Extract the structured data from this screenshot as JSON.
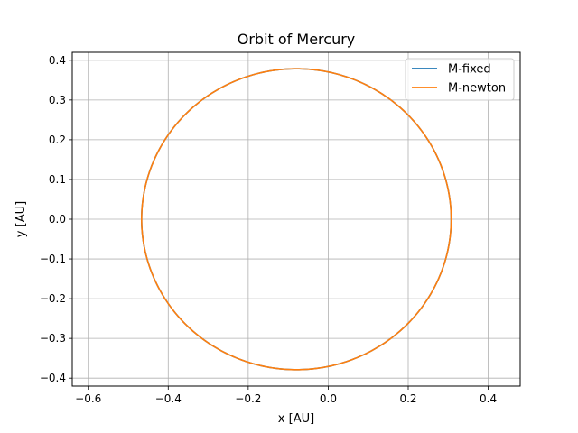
{
  "chart_data": {
    "type": "line",
    "title": "Orbit of Mercury",
    "xlabel": "x [AU]",
    "ylabel": "y [AU]",
    "xlim": [
      -0.64,
      0.48
    ],
    "ylim": [
      -0.42,
      0.42
    ],
    "xticks": [
      -0.6,
      -0.4,
      -0.2,
      0.0,
      0.2,
      0.4
    ],
    "xtick_labels": [
      "−0.6",
      "−0.4",
      "−0.2",
      "0.0",
      "0.2",
      "0.4"
    ],
    "yticks": [
      0.4,
      0.3,
      0.2,
      0.1,
      0.0,
      -0.1,
      -0.2,
      -0.3,
      -0.4
    ],
    "ytick_labels": [
      "0.4",
      "0.3",
      "0.2",
      "0.1",
      "0.0",
      "−0.1",
      "−0.2",
      "−0.3",
      "−0.4"
    ],
    "grid": true,
    "legend_position": "top-right",
    "orbit": {
      "semi_major_axis": 0.387,
      "eccentricity": 0.2056
    },
    "series": [
      {
        "name": "M-fixed",
        "color": "#1f77b4"
      },
      {
        "name": "M-newton",
        "color": "#ff7f0e"
      }
    ]
  }
}
